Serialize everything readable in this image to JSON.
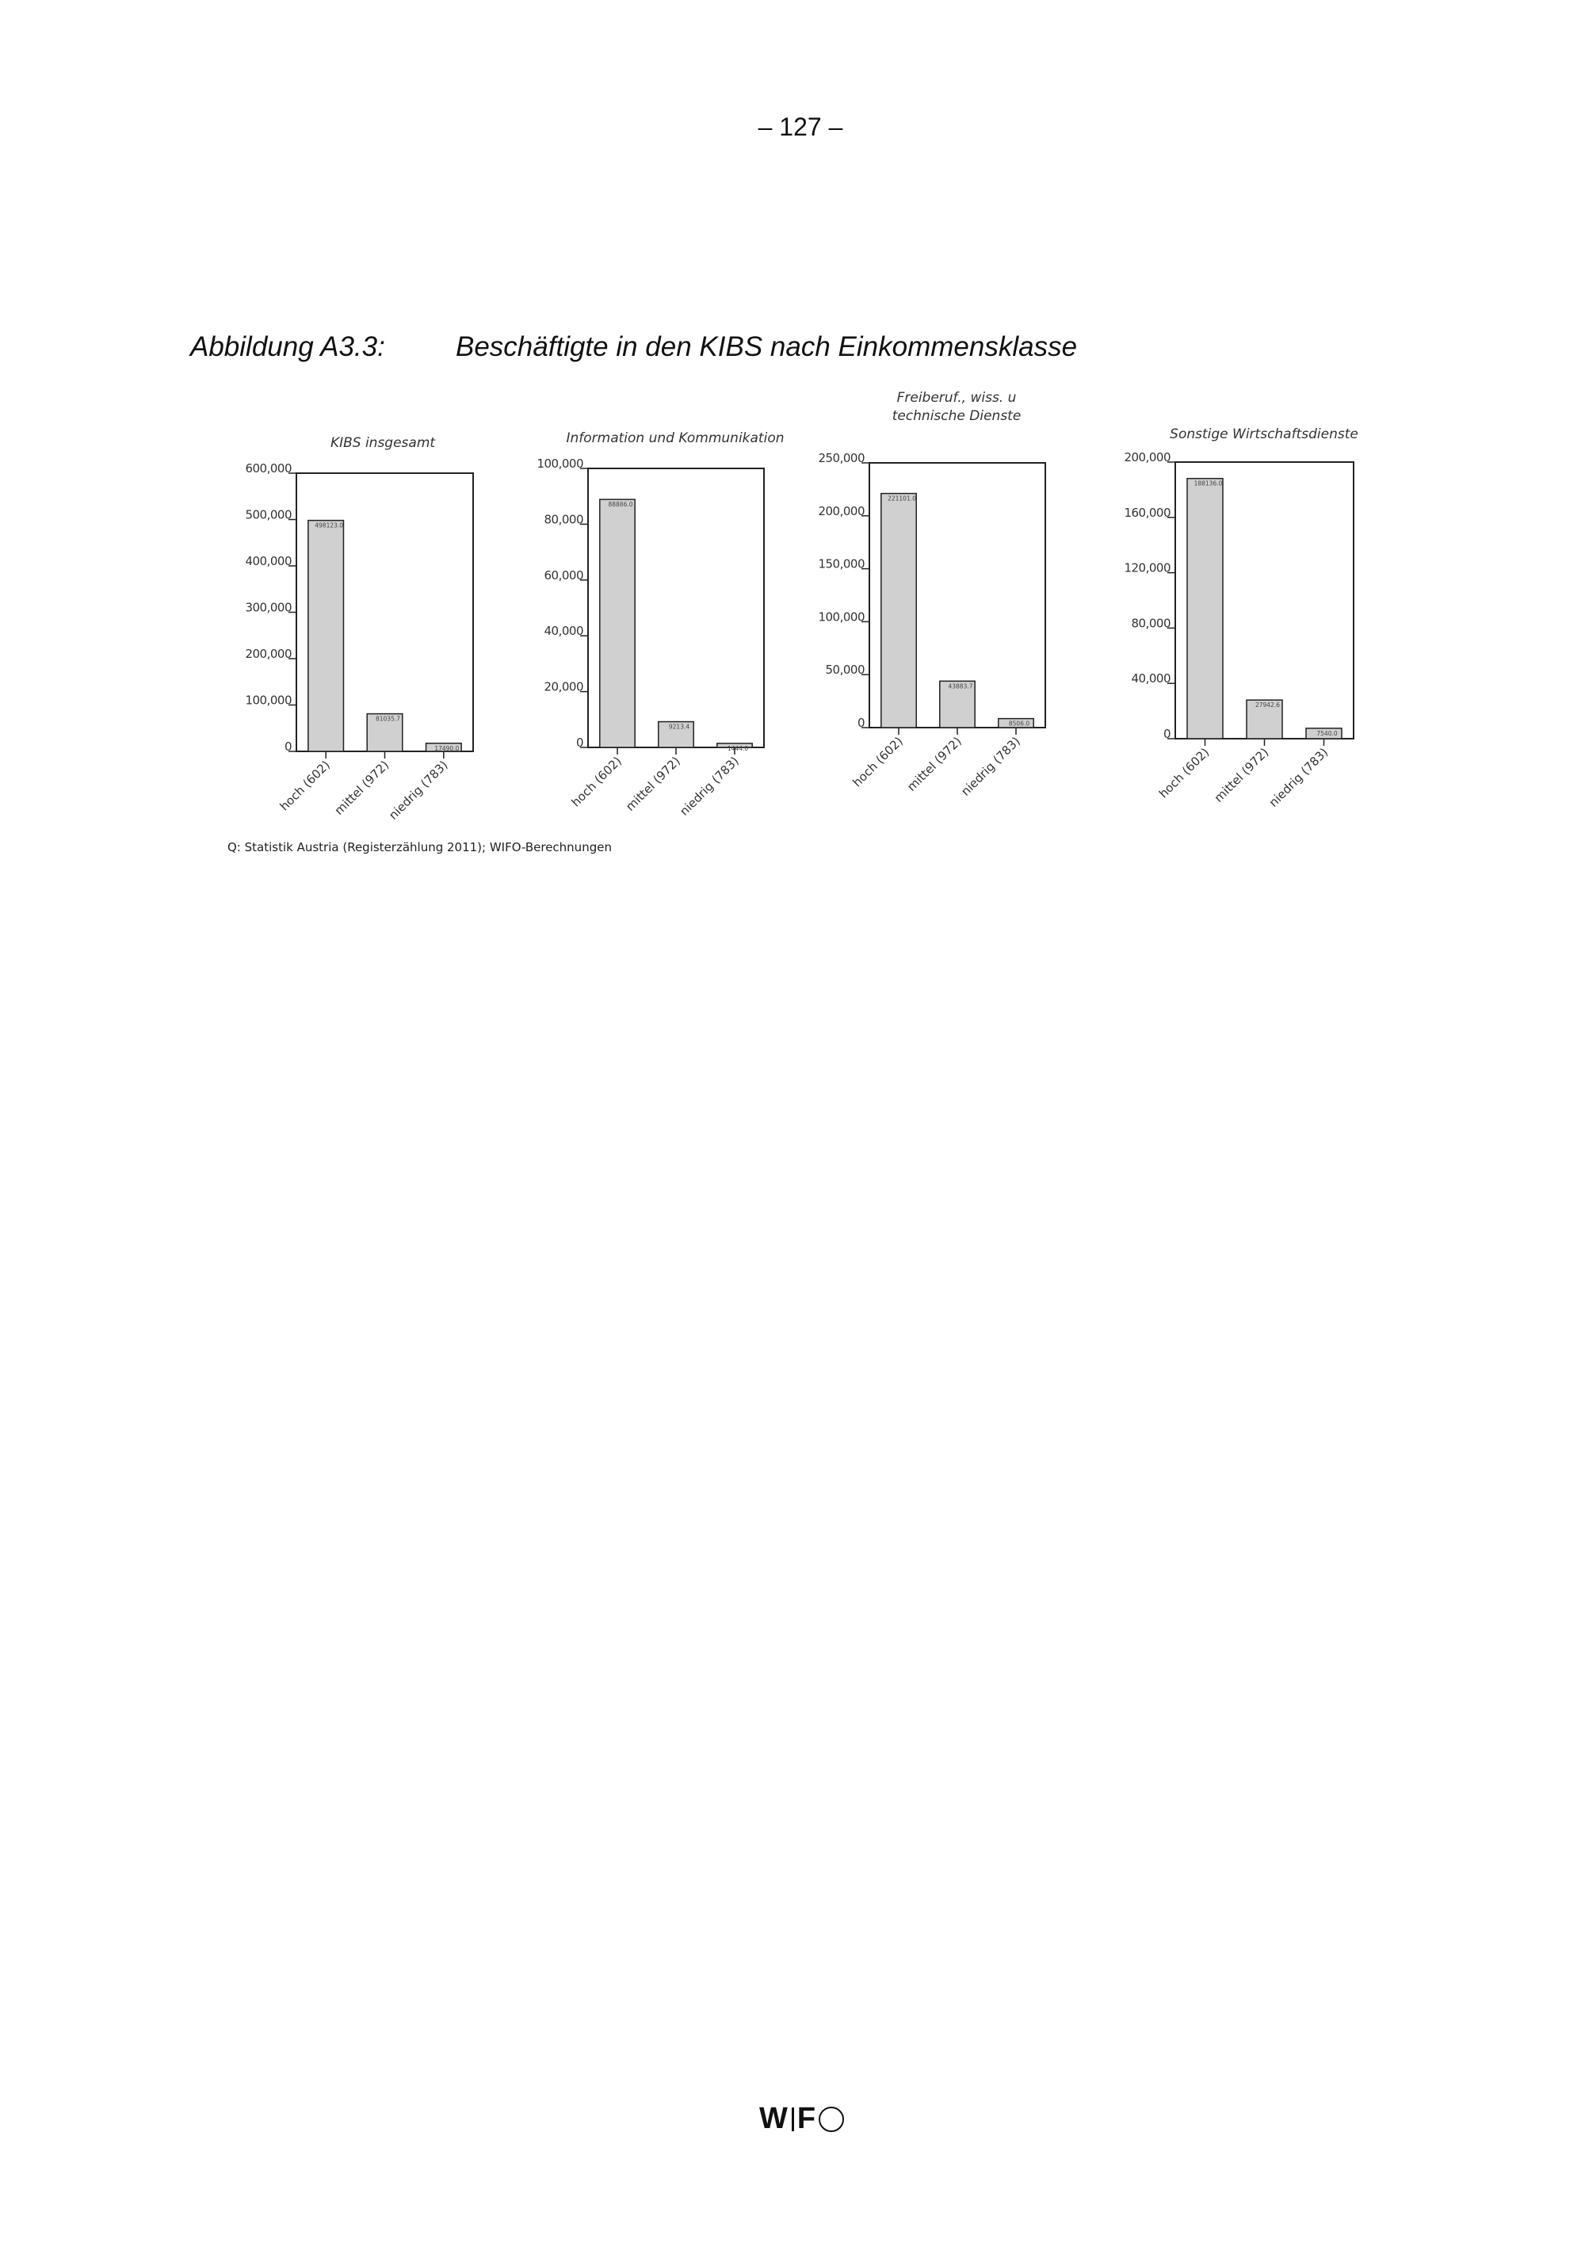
{
  "page_number": "– 127 –",
  "figure": {
    "label": "Abbildung A3.3:",
    "title": "Beschäftigte in den KIBS nach Einkommensklasse",
    "source": "Q: Statistik Austria (Registerzählung 2011); WIFO-Berechnungen"
  },
  "footer": {
    "logo_text": "WIFO"
  },
  "colors": {
    "bar_fill": "#d0d0d0",
    "bar_stroke": "#222222",
    "axis": "#222222"
  },
  "chart_data": [
    {
      "type": "bar",
      "title": [
        "KIBS insgesamt"
      ],
      "categories": [
        "hoch (602)",
        "mittel (972)",
        "niedrig (783)"
      ],
      "values": [
        498123.0,
        81035.7,
        17490.0
      ],
      "value_labels": [
        "498123.0",
        "81035.7",
        "17490.0"
      ],
      "ylim": [
        0,
        600000
      ],
      "yticks": [
        0,
        100000,
        200000,
        300000,
        400000,
        500000,
        600000
      ],
      "ytick_labels": [
        "0",
        "100,000",
        "200,000",
        "300,000",
        "400,000",
        "500,000",
        "600,000"
      ],
      "grid": false
    },
    {
      "type": "bar",
      "title": [
        "Information und Kommunikation"
      ],
      "categories": [
        "hoch (602)",
        "mittel (972)",
        "niedrig (783)"
      ],
      "values": [
        88886.0,
        9213.4,
        1444.0
      ],
      "value_labels": [
        "88886.0",
        "9213.4",
        "1444.0"
      ],
      "ylim": [
        0,
        100000
      ],
      "yticks": [
        0,
        20000,
        40000,
        60000,
        80000,
        100000
      ],
      "ytick_labels": [
        "0",
        "20,000",
        "40,000",
        "60,000",
        "80,000",
        "100,000"
      ],
      "grid": false
    },
    {
      "type": "bar",
      "title": [
        "Freiberuf., wiss. u",
        "technische Dienste"
      ],
      "categories": [
        "hoch (602)",
        "mittel (972)",
        "niedrig (783)"
      ],
      "values": [
        221101.0,
        43883.7,
        8506.0
      ],
      "value_labels": [
        "221101.0",
        "43883.7",
        "8506.0"
      ],
      "ylim": [
        0,
        250000
      ],
      "yticks": [
        0,
        50000,
        100000,
        150000,
        200000,
        250000
      ],
      "ytick_labels": [
        "0",
        "50,000",
        "100,000",
        "150,000",
        "200,000",
        "250,000"
      ],
      "grid": false
    },
    {
      "type": "bar",
      "title": [
        "Sonstige Wirtschaftsdienste"
      ],
      "categories": [
        "hoch (602)",
        "mittel (972)",
        "niedrig (783)"
      ],
      "values": [
        188136.0,
        27942.6,
        7540.0
      ],
      "value_labels": [
        "188136.0",
        "27942.6",
        "7540.0"
      ],
      "ylim": [
        0,
        200000
      ],
      "yticks": [
        0,
        40000,
        80000,
        120000,
        160000,
        200000
      ],
      "ytick_labels": [
        "0",
        "40,000",
        "80,000",
        "120,000",
        "160,000",
        "200,000"
      ],
      "grid": false
    }
  ]
}
